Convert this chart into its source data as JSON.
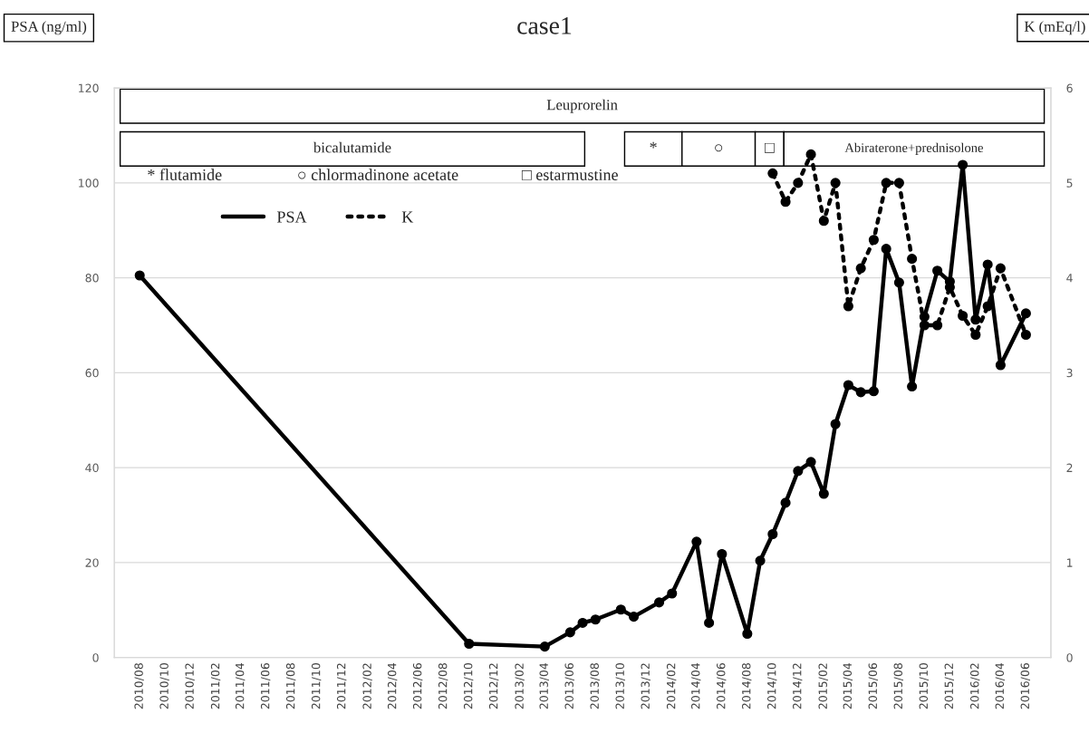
{
  "chart_data": {
    "type": "line",
    "title": "case1",
    "ylabel": "PSA (ng/ml)",
    "y2label": "K (mEq/l)",
    "annotations": [
      "* flutamide",
      "○ chlormadinone acetate",
      "□ estarmustine"
    ],
    "bands": [
      {
        "axis": "x",
        "from": "2010-06-15",
        "to": "2016-07-15",
        "label": "Leuprorelin",
        "color": "#ffffff"
      },
      {
        "axis": "x",
        "from": "2010-06-15",
        "to": "2013-07-06",
        "label": "bicalutamide",
        "color": "#ffffff"
      },
      {
        "axis": "x",
        "from": "2013-10-10",
        "to": "2014-02-25",
        "label": "*",
        "color": "#ffffff"
      },
      {
        "axis": "x",
        "from": "2014-02-25",
        "to": "2014-08-20",
        "label": "○",
        "color": "#ffffff"
      },
      {
        "axis": "x",
        "from": "2014-08-20",
        "to": "2014-10-28",
        "label": "□",
        "color": "#ffffff"
      },
      {
        "axis": "x",
        "from": "2014-10-28",
        "to": "2016-07-15",
        "label": "Abiraterone+prednisolone",
        "color": "#ffffff"
      }
    ],
    "series": [
      {
        "name": "PSA",
        "color": "#000000",
        "line_style": "solid",
        "x": [
          "2010-08",
          "2012-10",
          "2013-04",
          "2013-06",
          "2013-07",
          "2013-08",
          "2013-10",
          "2013-11",
          "2014-01",
          "2014-02",
          "2014-04",
          "2014-05",
          "2014-06",
          "2014-08",
          "2014-09",
          "2014-10",
          "2014-11",
          "2014-12",
          "2015-01",
          "2015-02",
          "2015-03",
          "2015-04",
          "2015-05",
          "2015-06",
          "2015-07",
          "2015-08",
          "2015-09",
          "2015-10",
          "2015-11",
          "2015-12",
          "2016-01",
          "2016-02",
          "2016-03",
          "2016-04",
          "2016-06"
        ],
        "values": [
          80.5,
          2.9,
          2.3,
          5.3,
          7.3,
          8.0,
          10.1,
          8.6,
          11.6,
          13.5,
          24.4,
          7.3,
          21.8,
          5.0,
          20.4,
          26.0,
          32.6,
          39.3,
          41.2,
          34.5,
          49.2,
          57.4,
          55.9,
          56.1,
          86.1,
          79.0,
          57.1,
          71.8,
          81.5,
          79.2,
          103.8,
          71.2,
          82.8,
          61.6,
          72.5
        ]
      },
      {
        "name": "K",
        "color": "#000000",
        "line_style": "dotted",
        "axis": "y2",
        "x": [
          "2014-10",
          "2014-11",
          "2014-12",
          "2015-01",
          "2015-02",
          "2015-03",
          "2015-04",
          "2015-05",
          "2015-06",
          "2015-07",
          "2015-08",
          "2015-09",
          "2015-10",
          "2015-11",
          "2015-12",
          "2016-01",
          "2016-02",
          "2016-03",
          "2016-04",
          "2016-06"
        ],
        "values": [
          5.1,
          4.8,
          5.0,
          5.3,
          4.6,
          5.0,
          3.7,
          4.1,
          4.4,
          5.0,
          5.0,
          4.2,
          3.5,
          3.5,
          3.9,
          3.6,
          3.4,
          3.7,
          4.1,
          3.4
        ]
      }
    ],
    "marker": "circle",
    "grid": "y",
    "legend": "top left",
    "xlim": [
      "2010-06-01",
      "2016-07-31"
    ],
    "xticks": [
      {
        "value": "2010-08",
        "label": "2010/08"
      },
      {
        "value": "2010-10",
        "label": "2010/10"
      },
      {
        "value": "2010-12",
        "label": "2010/12"
      },
      {
        "value": "2011-02",
        "label": "2011/02"
      },
      {
        "value": "2011-04",
        "label": "2011/04"
      },
      {
        "value": "2011-06",
        "label": "2011/06"
      },
      {
        "value": "2011-08",
        "label": "2011/08"
      },
      {
        "value": "2011-10",
        "label": "2011/10"
      },
      {
        "value": "2011-12",
        "label": "2011/12"
      },
      {
        "value": "2012-02",
        "label": "2012/02"
      },
      {
        "value": "2012-04",
        "label": "2012/04"
      },
      {
        "value": "2012-06",
        "label": "2012/06"
      },
      {
        "value": "2012-08",
        "label": "2012/08"
      },
      {
        "value": "2012-10",
        "label": "2012/10"
      },
      {
        "value": "2012-12",
        "label": "2012/12"
      },
      {
        "value": "2013-02",
        "label": "2013/02"
      },
      {
        "value": "2013-04",
        "label": "2013/04"
      },
      {
        "value": "2013-06",
        "label": "2013/06"
      },
      {
        "value": "2013-08",
        "label": "2013/08"
      },
      {
        "value": "2013-10",
        "label": "2013/10"
      },
      {
        "value": "2013-12",
        "label": "2013/12"
      },
      {
        "value": "2014-02",
        "label": "2014/02"
      },
      {
        "value": "2014-04",
        "label": "2014/04"
      },
      {
        "value": "2014-06",
        "label": "2014/06"
      },
      {
        "value": "2014-08",
        "label": "2014/08"
      },
      {
        "value": "2014-10",
        "label": "2014/10"
      },
      {
        "value": "2014-12",
        "label": "2014/12"
      },
      {
        "value": "2015-02",
        "label": "2015/02"
      },
      {
        "value": "2015-04",
        "label": "2015/04"
      },
      {
        "value": "2015-06",
        "label": "2015/06"
      },
      {
        "value": "2015-08",
        "label": "2015/08"
      },
      {
        "value": "2015-10",
        "label": "2015/10"
      },
      {
        "value": "2015-12",
        "label": "2015/12"
      },
      {
        "value": "2016-02",
        "label": "2016/02"
      },
      {
        "value": "2016-04",
        "label": "2016/04"
      },
      {
        "value": "2016-06",
        "label": "2016/06"
      }
    ],
    "ylim": [
      0,
      120
    ],
    "yticks": [
      0,
      20,
      40,
      60,
      80,
      100,
      120
    ],
    "y2lim": [
      0,
      6
    ],
    "y2ticks": [
      0,
      1,
      2,
      3,
      4,
      5,
      6
    ]
  }
}
